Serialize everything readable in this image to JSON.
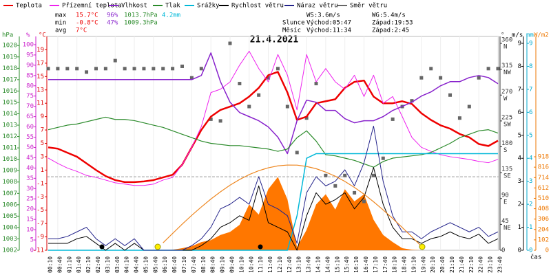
{
  "chart_data": {
    "type": "line",
    "title": "21.4.2021",
    "legend": [
      "Teplota",
      "Přízemní teplota",
      "Vlhkost",
      "Tlak",
      "Srážky",
      "Rychlost větru",
      "Náraz větru",
      "Směr větru"
    ],
    "stats": {
      "max": {
        "label": "max",
        "items": [
          "15.7°C",
          "96%",
          "1013.7hPa",
          "4.2mm"
        ]
      },
      "min": {
        "label": "min",
        "items": [
          "-0.8°C",
          "47%",
          "1009.3hPa"
        ]
      },
      "avg": {
        "label": "avg",
        "items": [
          "7°C"
        ]
      }
    },
    "info": {
      "ws": "WS:3.6m/s",
      "wg": "WG:5.4m/s",
      "sun": {
        "label": "Slunce",
        "rise": "Východ:05:47",
        "set": "Západ:19:53"
      },
      "moon": {
        "label": "Měsíc",
        "rise": "Východ:11:34",
        "set": "Západ:2:45"
      }
    },
    "x_label": "čas",
    "categories": [
      "00:10",
      "00:40",
      "01:10",
      "01:40",
      "02:10",
      "02:40",
      "03:10",
      "03:40",
      "04:10",
      "04:40",
      "05:10",
      "05:40",
      "06:10",
      "06:40",
      "07:10",
      "07:40",
      "08:10",
      "08:40",
      "09:10",
      "09:40",
      "10:10",
      "10:40",
      "11:10",
      "11:40",
      "12:10",
      "12:40",
      "13:10",
      "13:40",
      "14:10",
      "14:40",
      "15:10",
      "15:40",
      "16:10",
      "16:40",
      "17:10",
      "17:40",
      "18:10",
      "18:40",
      "19:10",
      "19:40",
      "20:10",
      "20:40",
      "21:10",
      "21:40",
      "22:10",
      "22:40",
      "23:10",
      "23:40"
    ],
    "axes": {
      "hpa": {
        "unit": "hPa",
        "color": "#2a8a2a",
        "lim": [
          1002,
          1020.8
        ],
        "ticks": [
          1002,
          1003,
          1004,
          1005,
          1006,
          1007,
          1008,
          1009,
          1010,
          1011,
          1012,
          1013,
          1014,
          1015,
          1016,
          1017,
          1018,
          1019,
          1020
        ]
      },
      "pct": {
        "unit": "%",
        "color": "#cc22cc",
        "lim": [
          0,
          104
        ],
        "ticks": [
          0,
          5,
          10,
          15,
          20,
          25,
          30,
          35,
          40,
          45,
          50,
          55,
          60,
          65,
          70,
          75,
          80,
          85,
          90,
          95,
          100
        ]
      },
      "temp": {
        "unit": "°C",
        "color": "#dd0000",
        "lim": [
          -11,
          21
        ],
        "ticks": [
          -11,
          -9,
          -7,
          -5,
          -3,
          -1,
          1,
          3,
          5,
          7,
          9,
          11,
          13,
          15,
          17,
          19
        ],
        "zero": 0
      },
      "dir": {
        "unit": "°",
        "color": "#333333",
        "lim": [
          0,
          372
        ],
        "ticks": [
          0,
          {
            "value": 45,
            "label": "45",
            "sub": "NE"
          },
          {
            "value": 90,
            "label": "90",
            "sub": "E"
          },
          {
            "value": 135,
            "label": "135",
            "sub": "SE"
          },
          {
            "value": 180,
            "label": "180",
            "sub": "S"
          },
          {
            "value": 225,
            "label": "225",
            "sub": "SW"
          },
          {
            "value": 270,
            "label": "270",
            "sub": "W"
          },
          {
            "value": 315,
            "label": "315",
            "sub": "NW"
          },
          {
            "value": 360,
            "label": "360",
            "sub": "N"
          }
        ]
      },
      "ms": {
        "unit": "m/s",
        "color": "#000000",
        "lim": [
          0,
          9.3
        ],
        "ticks": [
          0,
          1,
          2,
          3,
          4,
          5,
          6,
          7,
          8,
          9
        ]
      },
      "mm": {
        "unit": "mm",
        "color": "#00aacc",
        "lim": [
          0,
          9.3
        ],
        "ticks": [
          0,
          1,
          2,
          3,
          4,
          5,
          6,
          7,
          8,
          9
        ]
      },
      "wm": {
        "unit": "W/m2",
        "color": "#ee7700",
        "lim": [
          0,
          2100
        ],
        "ticks": [
          0,
          102,
          204,
          306,
          408,
          510,
          612,
          714,
          816,
          918
        ]
      }
    },
    "series": [
      {
        "name": "Teplota",
        "color": "#ee0000",
        "axis": "temp",
        "style": "line",
        "width": 2.5,
        "values": [
          4.4,
          4.2,
          3.6,
          3,
          2,
          1,
          0.1,
          -0.5,
          -0.8,
          -0.8,
          -0.7,
          -0.5,
          -0.1,
          0.3,
          1.8,
          4.4,
          7,
          9,
          10,
          10.5,
          11,
          12,
          13.3,
          15.2,
          15.7,
          12.6,
          8.5,
          9,
          11,
          11.3,
          11.6,
          13.3,
          14.2,
          14.4,
          12,
          11,
          11,
          11.3,
          10.9,
          9.5,
          8.5,
          7.7,
          7.2,
          6.4,
          5.9,
          4.9,
          4.6,
          5.4
        ]
      },
      {
        "name": "Přízemní teplota",
        "color": "#ee22ee",
        "axis": "temp",
        "style": "line",
        "width": 1,
        "values": [
          2.8,
          2,
          1.3,
          0.8,
          0.2,
          -0.1,
          -0.5,
          -0.9,
          -1.1,
          -1.3,
          -1.3,
          -1.1,
          -0.5,
          -0.1,
          1.8,
          4.4,
          7.5,
          12.6,
          13.1,
          14.2,
          16.7,
          18.8,
          16.2,
          14.2,
          18.3,
          15.2,
          10,
          18.3,
          14.2,
          16.2,
          14.2,
          13.1,
          15.2,
          12,
          15.2,
          11,
          12,
          9,
          5.9,
          4.4,
          3.8,
          3.3,
          3,
          2.8,
          2.6,
          2.3,
          2.1,
          2.6
        ]
      },
      {
        "name": "Vlhkost",
        "color": "#8822cc",
        "axis": "pct",
        "style": "line",
        "width": 1.5,
        "values": [
          83,
          83,
          83,
          83,
          83,
          83,
          83,
          83,
          83,
          83,
          83,
          83,
          83,
          83,
          83,
          83,
          85,
          96,
          82,
          72,
          67,
          65,
          63,
          60,
          55,
          47,
          63,
          73,
          72,
          68,
          68,
          64,
          62,
          63,
          63,
          65,
          68,
          70,
          72,
          75,
          77,
          80,
          82,
          82,
          84,
          85,
          84,
          81
        ]
      },
      {
        "name": "Tlak",
        "color": "#2a8a2a",
        "axis": "hpa",
        "style": "line",
        "width": 1.2,
        "values": [
          1012.6,
          1012.8,
          1013,
          1013.1,
          1013.3,
          1013.5,
          1013.7,
          1013.5,
          1013.5,
          1013.4,
          1013.2,
          1013,
          1012.8,
          1012.5,
          1012.2,
          1011.9,
          1011.6,
          1011.4,
          1011.3,
          1011.2,
          1011.2,
          1011.1,
          1011,
          1010.9,
          1010.7,
          1010.9,
          1011.9,
          1012.5,
          1011.6,
          1010.4,
          1010.3,
          1010.1,
          1009.9,
          1009.6,
          1009.3,
          1009.8,
          1010.1,
          1010.2,
          1010.3,
          1010.4,
          1010.6,
          1011,
          1011.4,
          1011.9,
          1012.2,
          1012.5,
          1012.6,
          1012.3
        ]
      },
      {
        "name": "Srážky",
        "color": "#00b8d8",
        "axis": "mm",
        "style": "line",
        "width": 1.5,
        "values": [
          0,
          0,
          0,
          0,
          0,
          0,
          0,
          0,
          0,
          0,
          0,
          0,
          0,
          0,
          0,
          0,
          0,
          0,
          0,
          0,
          0,
          0,
          0,
          0,
          0,
          0,
          1.5,
          4,
          4.2,
          4.2,
          4.2,
          4.2,
          4.2,
          4.2,
          4.2,
          4.2,
          4.2,
          4.2,
          4.2,
          4.2,
          4.2,
          4.2,
          4.2,
          4.2,
          4.2,
          4.2,
          4.2,
          4.2
        ]
      },
      {
        "name": "Rychlost větru",
        "color": "#000000",
        "axis": "ms",
        "style": "line",
        "width": 1,
        "values": [
          0.3,
          0.3,
          0.3,
          0.5,
          0.6,
          0.3,
          0,
          0.3,
          0,
          0.3,
          0,
          0,
          0,
          0,
          0,
          0,
          0.2,
          0.5,
          1,
          1.2,
          1.5,
          1.3,
          2.8,
          1.2,
          1,
          0.8,
          0,
          1.5,
          2.5,
          2,
          2.2,
          2.5,
          1.8,
          2.3,
          3.6,
          2,
          1,
          0.5,
          0.5,
          0.3,
          0.5,
          0.6,
          0.8,
          0.6,
          0.5,
          0.7,
          0.3,
          0.5
        ]
      },
      {
        "name": "Náraz větru",
        "color": "#22228a",
        "axis": "ms",
        "style": "line",
        "width": 1,
        "values": [
          0.5,
          0.5,
          0.6,
          0.8,
          1,
          0.5,
          0.2,
          0.5,
          0.2,
          0.5,
          0,
          0,
          0,
          0,
          0,
          0.2,
          0.5,
          1,
          1.8,
          2,
          2.3,
          2,
          3.2,
          2,
          1.8,
          1.5,
          0.3,
          2.5,
          3.2,
          2.8,
          3,
          3.5,
          2.8,
          3.8,
          5.4,
          3,
          1.5,
          0.8,
          0.8,
          0.5,
          0.8,
          1,
          1.2,
          1,
          0.8,
          1,
          0.6,
          0.8
        ]
      },
      {
        "name": "Směr větru",
        "color": "#666666",
        "axis": "dir",
        "style": "marker",
        "values": [
          316,
          316,
          316,
          316,
          310,
          316,
          316,
          330,
          316,
          316,
          316,
          316,
          316,
          316,
          320,
          300,
          316,
          228,
          225,
          360,
          290,
          250,
          270,
          300,
          316,
          250,
          170,
          230,
          290,
          130,
          112,
          130,
          100,
          85,
          130,
          160,
          228,
          250,
          260,
          300,
          316,
          300,
          270,
          230,
          250,
          300,
          316,
          316
        ]
      },
      {
        "color": "#ff7700",
        "axis": "wm",
        "style": "area",
        "values": [
          0,
          0,
          0,
          0,
          0,
          0,
          0,
          0,
          0,
          0,
          0,
          0,
          0,
          5,
          20,
          40,
          80,
          100,
          150,
          180,
          250,
          450,
          350,
          600,
          720,
          500,
          30,
          200,
          450,
          550,
          400,
          600,
          480,
          550,
          300,
          150,
          80,
          20,
          5,
          0,
          0,
          0,
          0,
          0,
          0,
          0,
          0,
          0
        ]
      },
      {
        "color": "#ee8822",
        "axis": "wm",
        "style": "line",
        "width": 1.2,
        "values": [
          null,
          null,
          null,
          null,
          null,
          null,
          null,
          null,
          null,
          null,
          null,
          null,
          73,
          165,
          256,
          343,
          425,
          503,
          574,
          639,
          695,
          743,
          781,
          810,
          829,
          837,
          836,
          823,
          801,
          768,
          727,
          676,
          617,
          551,
          476,
          396,
          312,
          223,
          132,
          39,
          null,
          null,
          null,
          null,
          null,
          null,
          null,
          null
        ]
      }
    ]
  }
}
